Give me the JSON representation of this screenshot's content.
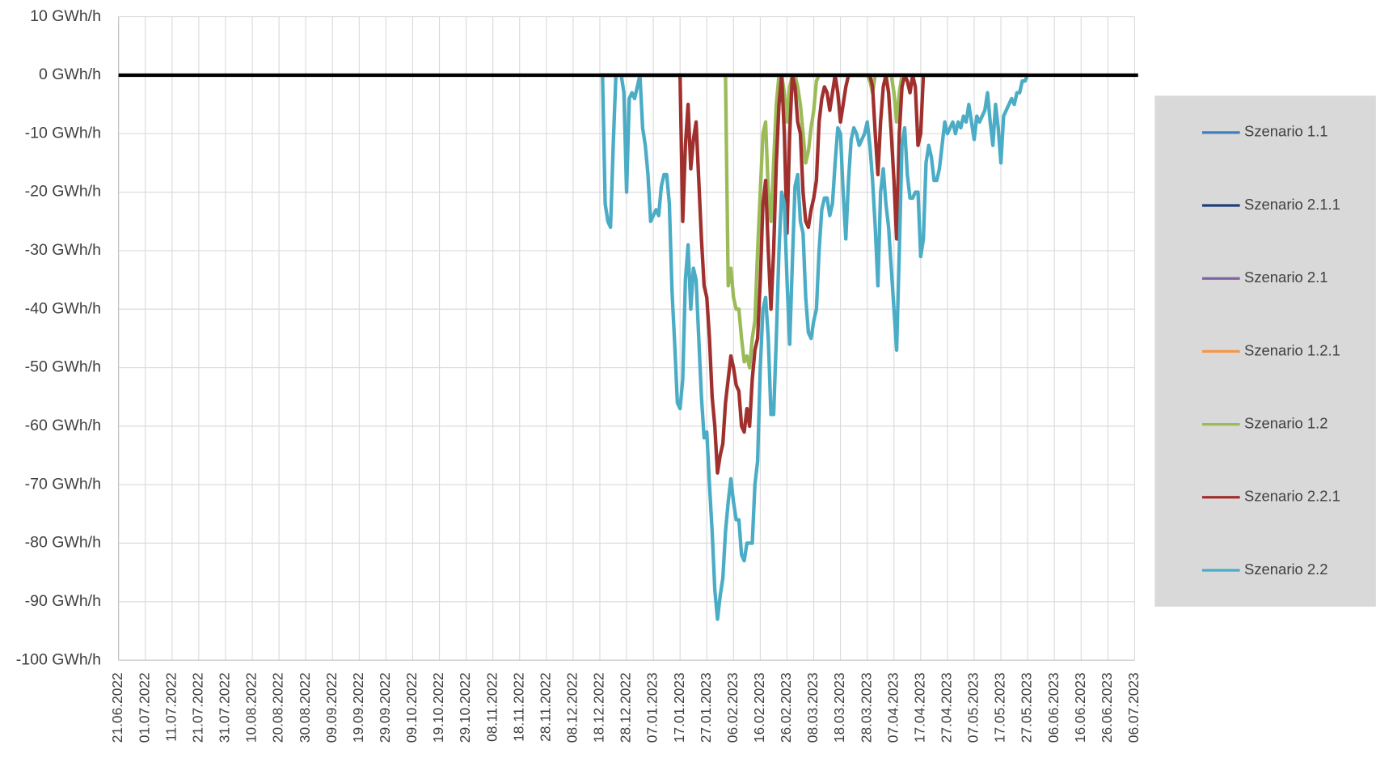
{
  "chart_data": {
    "type": "line",
    "xlim": [
      "21.06.2022",
      "06.07.2023"
    ],
    "xticks": [
      "21.06.2022",
      "01.07.2022",
      "11.07.2022",
      "21.07.2022",
      "31.07.2022",
      "10.08.2022",
      "20.08.2022",
      "30.08.2022",
      "09.09.2022",
      "19.09.2022",
      "29.09.2022",
      "09.10.2022",
      "19.10.2022",
      "29.10.2022",
      "08.11.2022",
      "18.11.2022",
      "28.11.2022",
      "08.12.2022",
      "18.12.2022",
      "28.12.2022",
      "07.01.2023",
      "17.01.2023",
      "27.01.2023",
      "06.02.2023",
      "16.02.2023",
      "26.02.2023",
      "08.03.2023",
      "18.03.2023",
      "28.03.2023",
      "07.04.2023",
      "17.04.2023",
      "27.04.2023",
      "07.05.2023",
      "17.05.2023",
      "27.05.2023",
      "06.06.2023",
      "16.06.2023",
      "26.06.2023",
      "06.07.2023"
    ],
    "ylim": [
      -100,
      10
    ],
    "yticks": [
      {
        "value": 10,
        "label": "10 GWh/h"
      },
      {
        "value": 0,
        "label": "0 GWh/h"
      },
      {
        "value": -10,
        "label": "-10 GWh/h"
      },
      {
        "value": -20,
        "label": "-20 GWh/h"
      },
      {
        "value": -30,
        "label": "-30 GWh/h"
      },
      {
        "value": -40,
        "label": "-40 GWh/h"
      },
      {
        "value": -50,
        "label": "-50 GWh/h"
      },
      {
        "value": -60,
        "label": "-60 GWh/h"
      },
      {
        "value": -70,
        "label": "-70 GWh/h"
      },
      {
        "value": -80,
        "label": "-80 GWh/h"
      },
      {
        "value": -90,
        "label": "-90 GWh/h"
      },
      {
        "value": -100,
        "label": "-100 GWh/h"
      }
    ],
    "grid": true,
    "legend": "right",
    "series": [
      {
        "name": "Szenario 1.1",
        "color": "#3f7fc0",
        "x": [
          "18.12.2022",
          "27.05.2023"
        ],
        "values": [
          0,
          0
        ]
      },
      {
        "name": "Szenario 2.1.1",
        "color": "#1f3f7a",
        "x": [
          "18.12.2022",
          "27.05.2023"
        ],
        "values": [
          0,
          0
        ]
      },
      {
        "name": "Szenario 2.1",
        "color": "#8064a2",
        "x": [
          "18.12.2022",
          "27.05.2023"
        ],
        "values": [
          0,
          0
        ]
      },
      {
        "name": "Szenario 1.2.1",
        "color": "#f79646",
        "x": [
          "18.12.2022",
          "27.05.2023"
        ],
        "values": [
          0,
          0
        ]
      },
      {
        "name": "Szenario 1.2",
        "color": "#9bbb59",
        "x": [
          "03.02.2023",
          "04.02.2023",
          "05.02.2023",
          "06.02.2023",
          "07.02.2023",
          "08.02.2023",
          "09.02.2023",
          "10.02.2023",
          "11.02.2023",
          "12.02.2023",
          "13.02.2023",
          "14.02.2023",
          "15.02.2023",
          "16.02.2023",
          "17.02.2023",
          "18.02.2023",
          "19.02.2023",
          "20.02.2023",
          "21.02.2023",
          "22.02.2023",
          "23.02.2023",
          "24.02.2023",
          "25.02.2023",
          "26.02.2023",
          "27.02.2023",
          "28.02.2023",
          "01.03.2023",
          "02.03.2023",
          "03.03.2023",
          "04.03.2023",
          "05.03.2023",
          "06.03.2023",
          "07.03.2023",
          "08.03.2023",
          "09.03.2023",
          "10.03.2023",
          "28.03.2023",
          "29.03.2023",
          "30.03.2023",
          "31.03.2023",
          "06.04.2023",
          "07.04.2023",
          "08.04.2023",
          "09.04.2023",
          "10.04.2023"
        ],
        "values": [
          0,
          -36,
          -33,
          -38,
          -40,
          -40,
          -45,
          -49,
          -48,
          -50,
          -45,
          -42,
          -30,
          -20,
          -10,
          -8,
          -20,
          -25,
          -15,
          -5,
          0,
          0,
          -3,
          -8,
          -2,
          0,
          0,
          -2,
          -5,
          -10,
          -15,
          -13,
          -9,
          -6,
          -1,
          0,
          0,
          -1,
          -3,
          0,
          0,
          -3,
          -8,
          -3,
          0
        ]
      },
      {
        "name": "Szenario 2.2.1",
        "color": "#a0302e",
        "x": [
          "16.01.2023",
          "17.01.2023",
          "18.01.2023",
          "19.01.2023",
          "20.01.2023",
          "21.01.2023",
          "22.01.2023",
          "23.01.2023",
          "24.01.2023",
          "25.01.2023",
          "26.01.2023",
          "27.01.2023",
          "28.01.2023",
          "29.01.2023",
          "30.01.2023",
          "31.01.2023",
          "01.02.2023",
          "02.02.2023",
          "03.02.2023",
          "04.02.2023",
          "05.02.2023",
          "06.02.2023",
          "07.02.2023",
          "08.02.2023",
          "09.02.2023",
          "10.02.2023",
          "11.02.2023",
          "12.02.2023",
          "13.02.2023",
          "14.02.2023",
          "15.02.2023",
          "16.02.2023",
          "17.02.2023",
          "18.02.2023",
          "19.02.2023",
          "20.02.2023",
          "21.02.2023",
          "22.02.2023",
          "23.02.2023",
          "24.02.2023",
          "25.02.2023",
          "26.02.2023",
          "27.02.2023",
          "28.02.2023",
          "01.03.2023",
          "02.03.2023",
          "03.03.2023",
          "04.03.2023",
          "05.03.2023",
          "06.03.2023",
          "07.03.2023",
          "08.03.2023",
          "09.03.2023",
          "10.03.2023",
          "11.03.2023",
          "12.03.2023",
          "13.03.2023",
          "14.03.2023",
          "15.03.2023",
          "16.03.2023",
          "17.03.2023",
          "18.03.2023",
          "19.03.2023",
          "20.03.2023",
          "21.03.2023",
          "29.03.2023",
          "30.03.2023",
          "31.03.2023",
          "01.04.2023",
          "02.04.2023",
          "03.04.2023",
          "04.04.2023",
          "05.04.2023",
          "06.04.2023",
          "07.04.2023",
          "08.04.2023",
          "09.04.2023",
          "10.04.2023",
          "11.04.2023",
          "12.04.2023",
          "13.04.2023",
          "14.04.2023",
          "15.04.2023",
          "16.04.2023",
          "17.04.2023",
          "18.04.2023"
        ],
        "values": [
          0,
          0,
          -25,
          -12,
          -5,
          -16,
          -11,
          -8,
          -18,
          -28,
          -36,
          -38,
          -45,
          -55,
          -60,
          -68,
          -65,
          -63,
          -56,
          -52,
          -48,
          -50,
          -53,
          -54,
          -60,
          -61,
          -57,
          -60,
          -52,
          -47,
          -45,
          -35,
          -22,
          -18,
          -30,
          -40,
          -30,
          -15,
          -5,
          0,
          -10,
          -27,
          -10,
          0,
          -2,
          -8,
          -10,
          -20,
          -25,
          -26,
          -23,
          -21,
          -18,
          -8,
          -4,
          -2,
          -3,
          -6,
          -3,
          0,
          -3,
          -8,
          -5,
          -2,
          0,
          0,
          -2,
          -10,
          -17,
          -8,
          -2,
          0,
          -3,
          -10,
          -18,
          -28,
          -10,
          -2,
          0,
          -1,
          -3,
          0,
          -2,
          -12,
          -10,
          0
        ]
      },
      {
        "name": "Szenario 2.2",
        "color": "#4bacc6",
        "x": [
          "18.12.2022",
          "19.12.2022",
          "20.12.2022",
          "21.12.2022",
          "22.12.2022",
          "23.12.2022",
          "24.12.2022",
          "25.12.2022",
          "26.12.2022",
          "27.12.2022",
          "28.12.2022",
          "29.12.2022",
          "30.12.2022",
          "31.12.2022",
          "01.01.2023",
          "02.01.2023",
          "03.01.2023",
          "04.01.2023",
          "05.01.2023",
          "06.01.2023",
          "07.01.2023",
          "08.01.2023",
          "09.01.2023",
          "10.01.2023",
          "11.01.2023",
          "12.01.2023",
          "13.01.2023",
          "14.01.2023",
          "15.01.2023",
          "16.01.2023",
          "17.01.2023",
          "18.01.2023",
          "19.01.2023",
          "20.01.2023",
          "21.01.2023",
          "22.01.2023",
          "23.01.2023",
          "24.01.2023",
          "25.01.2023",
          "26.01.2023",
          "27.01.2023",
          "28.01.2023",
          "29.01.2023",
          "30.01.2023",
          "31.01.2023",
          "01.02.2023",
          "02.02.2023",
          "03.02.2023",
          "04.02.2023",
          "05.02.2023",
          "06.02.2023",
          "07.02.2023",
          "08.02.2023",
          "09.02.2023",
          "10.02.2023",
          "11.02.2023",
          "12.02.2023",
          "13.02.2023",
          "14.02.2023",
          "15.02.2023",
          "16.02.2023",
          "17.02.2023",
          "18.02.2023",
          "19.02.2023",
          "20.02.2023",
          "21.02.2023",
          "22.02.2023",
          "23.02.2023",
          "24.02.2023",
          "25.02.2023",
          "26.02.2023",
          "27.02.2023",
          "28.02.2023",
          "01.03.2023",
          "02.03.2023",
          "03.03.2023",
          "04.03.2023",
          "05.03.2023",
          "06.03.2023",
          "07.03.2023",
          "08.03.2023",
          "09.03.2023",
          "10.03.2023",
          "11.03.2023",
          "12.03.2023",
          "13.03.2023",
          "14.03.2023",
          "15.03.2023",
          "16.03.2023",
          "17.03.2023",
          "18.03.2023",
          "19.03.2023",
          "20.03.2023",
          "21.03.2023",
          "22.03.2023",
          "23.03.2023",
          "24.03.2023",
          "25.03.2023",
          "26.03.2023",
          "27.03.2023",
          "28.03.2023",
          "29.03.2023",
          "30.03.2023",
          "31.03.2023",
          "01.04.2023",
          "02.04.2023",
          "03.04.2023",
          "04.04.2023",
          "05.04.2023",
          "06.04.2023",
          "07.04.2023",
          "08.04.2023",
          "09.04.2023",
          "10.04.2023",
          "11.04.2023",
          "12.04.2023",
          "13.04.2023",
          "14.04.2023",
          "15.04.2023",
          "16.04.2023",
          "17.04.2023",
          "18.04.2023",
          "19.04.2023",
          "20.04.2023",
          "21.04.2023",
          "22.04.2023",
          "23.04.2023",
          "24.04.2023",
          "25.04.2023",
          "26.04.2023",
          "27.04.2023",
          "28.04.2023",
          "29.04.2023",
          "30.04.2023",
          "01.05.2023",
          "02.05.2023",
          "03.05.2023",
          "04.05.2023",
          "05.05.2023",
          "06.05.2023",
          "07.05.2023",
          "08.05.2023",
          "09.05.2023",
          "10.05.2023",
          "11.05.2023",
          "12.05.2023",
          "13.05.2023",
          "14.05.2023",
          "15.05.2023",
          "16.05.2023",
          "17.05.2023",
          "18.05.2023",
          "19.05.2023",
          "20.05.2023",
          "21.05.2023",
          "22.05.2023",
          "23.05.2023",
          "24.05.2023",
          "25.05.2023",
          "26.05.2023",
          "27.05.2023"
        ],
        "values": [
          0,
          0,
          -22,
          -25,
          -26,
          -12,
          0,
          0,
          0,
          -3,
          -20,
          -4,
          -3,
          -4,
          -2,
          0,
          -9,
          -12,
          -17,
          -25,
          -24,
          -23,
          -24,
          -19,
          -17,
          -17,
          -22,
          -37,
          -46,
          -56,
          -57,
          -52,
          -35,
          -29,
          -40,
          -33,
          -35,
          -45,
          -55,
          -62,
          -61,
          -70,
          -78,
          -88,
          -93,
          -89,
          -86,
          -78,
          -73,
          -69,
          -73,
          -76,
          -76,
          -82,
          -83,
          -80,
          -80,
          -80,
          -70,
          -66,
          -50,
          -40,
          -38,
          -45,
          -58,
          -58,
          -45,
          -30,
          -20,
          -22,
          -35,
          -46,
          -32,
          -19,
          -17,
          -25,
          -27,
          -38,
          -44,
          -45,
          -42,
          -40,
          -30,
          -23,
          -21,
          -21,
          -24,
          -22,
          -15,
          -9,
          -10,
          -20,
          -28,
          -18,
          -11,
          -9,
          -10,
          -12,
          -11,
          -10,
          -8,
          -12,
          -18,
          -26,
          -36,
          -20,
          -16,
          -22,
          -26,
          -33,
          -40,
          -47,
          -30,
          -12,
          -9,
          -17,
          -21,
          -21,
          -20,
          -20,
          -31,
          -28,
          -15,
          -12,
          -14,
          -18,
          -18,
          -16,
          -12,
          -8,
          -10,
          -9,
          -8,
          -10,
          -8,
          -9,
          -7,
          -8,
          -5,
          -8,
          -11,
          -7,
          -8,
          -7,
          -6,
          -3,
          -8,
          -12,
          -5,
          -9,
          -15,
          -7,
          -6,
          -5,
          -4,
          -5,
          -3,
          -3,
          -1,
          -1,
          0
        ]
      }
    ]
  }
}
